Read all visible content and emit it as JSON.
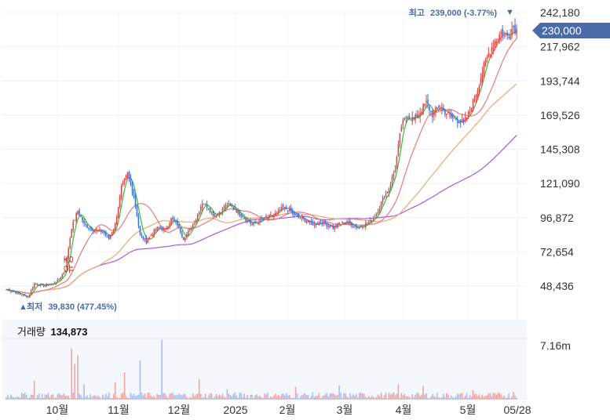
{
  "chart_data": {
    "type": "candlestick",
    "price_axis": {
      "ticks": [
        "242,180",
        "217,962",
        "193,744",
        "169,526",
        "145,308",
        "121,090",
        "96,872",
        "72,654",
        "48,436"
      ],
      "tick_values": [
        242180,
        217962,
        193744,
        169526,
        145308,
        121090,
        96872,
        72654,
        48436
      ],
      "range": [
        35000,
        252000
      ]
    },
    "date_axis": {
      "labels": [
        "10월",
        "11월",
        "12월",
        "2025",
        "2월",
        "3월",
        "4월",
        "5월",
        "05/28"
      ]
    },
    "current_price": {
      "label": "230,000",
      "value": 230000,
      "color": "#4a6ba8"
    },
    "high_annotation": {
      "label": "최고",
      "value_text": "239,000 (-3.77%)",
      "arrow": "▼",
      "value": 239000
    },
    "low_annotation": {
      "label": "최저",
      "value_text": "39,830 (477.45%)",
      "arrow": "▲",
      "value": 39830
    },
    "event_marker": {
      "text": "유증"
    },
    "volume": {
      "title": "거래량",
      "value": "134,873",
      "axis_tick": "7.16m",
      "tick_value": 7160000,
      "max_value": 9000000
    },
    "colors": {
      "up": "#e04848",
      "down": "#3f6fd8",
      "ma5": "#3ab83a",
      "ma20": "#e87a7a",
      "ma60": "#f0a868",
      "ma120": "#a65ae0",
      "volume_up": "#f0a5a5",
      "volume_down": "#a8bff0",
      "volume_bg": "#f4f7fb",
      "grid": "#eef0f3"
    },
    "anchors": [
      [
        0,
        46000
      ],
      [
        6,
        44000
      ],
      [
        10,
        42000
      ],
      [
        14,
        40500
      ],
      [
        18,
        50000
      ],
      [
        24,
        49000
      ],
      [
        30,
        50000
      ],
      [
        34,
        53000
      ],
      [
        38,
        60000
      ],
      [
        42,
        90000
      ],
      [
        46,
        102000
      ],
      [
        50,
        92000
      ],
      [
        56,
        88000
      ],
      [
        62,
        87000
      ],
      [
        66,
        82000
      ],
      [
        70,
        92000
      ],
      [
        74,
        118000
      ],
      [
        78,
        128000
      ],
      [
        82,
        112000
      ],
      [
        86,
        85000
      ],
      [
        90,
        80000
      ],
      [
        94,
        86000
      ],
      [
        98,
        90000
      ],
      [
        102,
        88000
      ],
      [
        106,
        96000
      ],
      [
        110,
        92000
      ],
      [
        114,
        82000
      ],
      [
        118,
        88000
      ],
      [
        122,
        96000
      ],
      [
        126,
        108000
      ],
      [
        130,
        104000
      ],
      [
        134,
        98000
      ],
      [
        138,
        102000
      ],
      [
        142,
        106000
      ],
      [
        146,
        104000
      ],
      [
        150,
        100000
      ],
      [
        154,
        96000
      ],
      [
        158,
        92000
      ],
      [
        162,
        94000
      ],
      [
        166,
        96000
      ],
      [
        170,
        98000
      ],
      [
        174,
        100000
      ],
      [
        178,
        104000
      ],
      [
        182,
        102000
      ],
      [
        186,
        98000
      ],
      [
        190,
        96000
      ],
      [
        194,
        94000
      ],
      [
        198,
        92000
      ],
      [
        202,
        94000
      ],
      [
        206,
        92000
      ],
      [
        210,
        90000
      ],
      [
        214,
        92000
      ],
      [
        218,
        94000
      ],
      [
        222,
        92000
      ],
      [
        226,
        90000
      ],
      [
        230,
        92000
      ],
      [
        234,
        94000
      ],
      [
        238,
        100000
      ],
      [
        242,
        110000
      ],
      [
        246,
        118000
      ],
      [
        250,
        132000
      ],
      [
        254,
        162000
      ],
      [
        258,
        170000
      ],
      [
        262,
        166000
      ],
      [
        266,
        172000
      ],
      [
        270,
        178000
      ],
      [
        274,
        170000
      ],
      [
        278,
        176000
      ],
      [
        282,
        172000
      ],
      [
        286,
        168000
      ],
      [
        290,
        166000
      ],
      [
        294,
        164000
      ],
      [
        298,
        172000
      ],
      [
        302,
        185000
      ],
      [
        306,
        200000
      ],
      [
        310,
        213000
      ],
      [
        314,
        222000
      ],
      [
        318,
        228000
      ],
      [
        322,
        226000
      ],
      [
        326,
        232000
      ],
      [
        328,
        230000
      ]
    ],
    "volume_spikes": [
      [
        18,
        2200000
      ],
      [
        42,
        6000000
      ],
      [
        44,
        4200000
      ],
      [
        46,
        5200000
      ],
      [
        50,
        1800000
      ],
      [
        70,
        2000000
      ],
      [
        76,
        3200000
      ],
      [
        86,
        4600000
      ],
      [
        100,
        7000000
      ],
      [
        124,
        2400000
      ],
      [
        142,
        1200000
      ],
      [
        186,
        1500000
      ],
      [
        214,
        1700000
      ],
      [
        252,
        1800000
      ],
      [
        268,
        1600000
      ],
      [
        300,
        1100000
      ],
      [
        326,
        900000
      ]
    ]
  }
}
